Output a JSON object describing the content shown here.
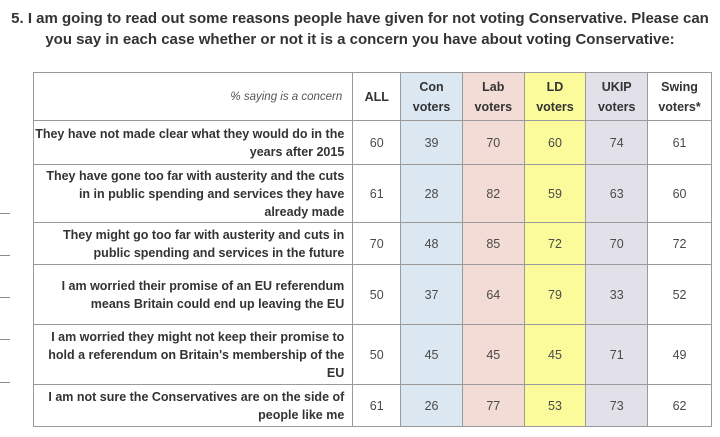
{
  "title": "5. I am going to read out some reasons people have given for not voting Conservative. Please can you say in each case whether or not it is a concern you have about voting Conservative:",
  "corner_label": "% saying is a concern",
  "columns": [
    {
      "key": "all",
      "line1": "ALL",
      "line2": ""
    },
    {
      "key": "con",
      "line1": "Con",
      "line2": "voters"
    },
    {
      "key": "lab",
      "line1": "Lab",
      "line2": "voters"
    },
    {
      "key": "ld",
      "line1": "LD",
      "line2": "voters"
    },
    {
      "key": "ukip",
      "line1": "UKIP",
      "line2": "voters"
    },
    {
      "key": "swing",
      "line1": "Swing",
      "line2": "voters*"
    }
  ],
  "rows": [
    {
      "statement": "They have not made clear what they would do in the years after 2015",
      "values": [
        "60",
        "39",
        "70",
        "60",
        "74",
        "61"
      ]
    },
    {
      "statement": "They have gone too far with austerity and the cuts in in public spending and services they have already made",
      "values": [
        "61",
        "28",
        "82",
        "59",
        "63",
        "60"
      ]
    },
    {
      "statement": "They might go too far with austerity and cuts in public spending and services in the future",
      "values": [
        "70",
        "48",
        "85",
        "72",
        "70",
        "72"
      ]
    },
    {
      "statement": "I am worried their promise of an EU referendum means Britain could end up leaving the EU",
      "values": [
        "50",
        "37",
        "64",
        "79",
        "33",
        "52"
      ]
    },
    {
      "statement": "I am worried they might not keep their promise to hold a referendum on Britain's membership of the EU",
      "values": [
        "50",
        "45",
        "45",
        "45",
        "71",
        "49"
      ]
    },
    {
      "statement": "I am not sure the Conservatives are on the side of people like me",
      "values": [
        "61",
        "26",
        "77",
        "53",
        "73",
        "62"
      ]
    }
  ]
}
